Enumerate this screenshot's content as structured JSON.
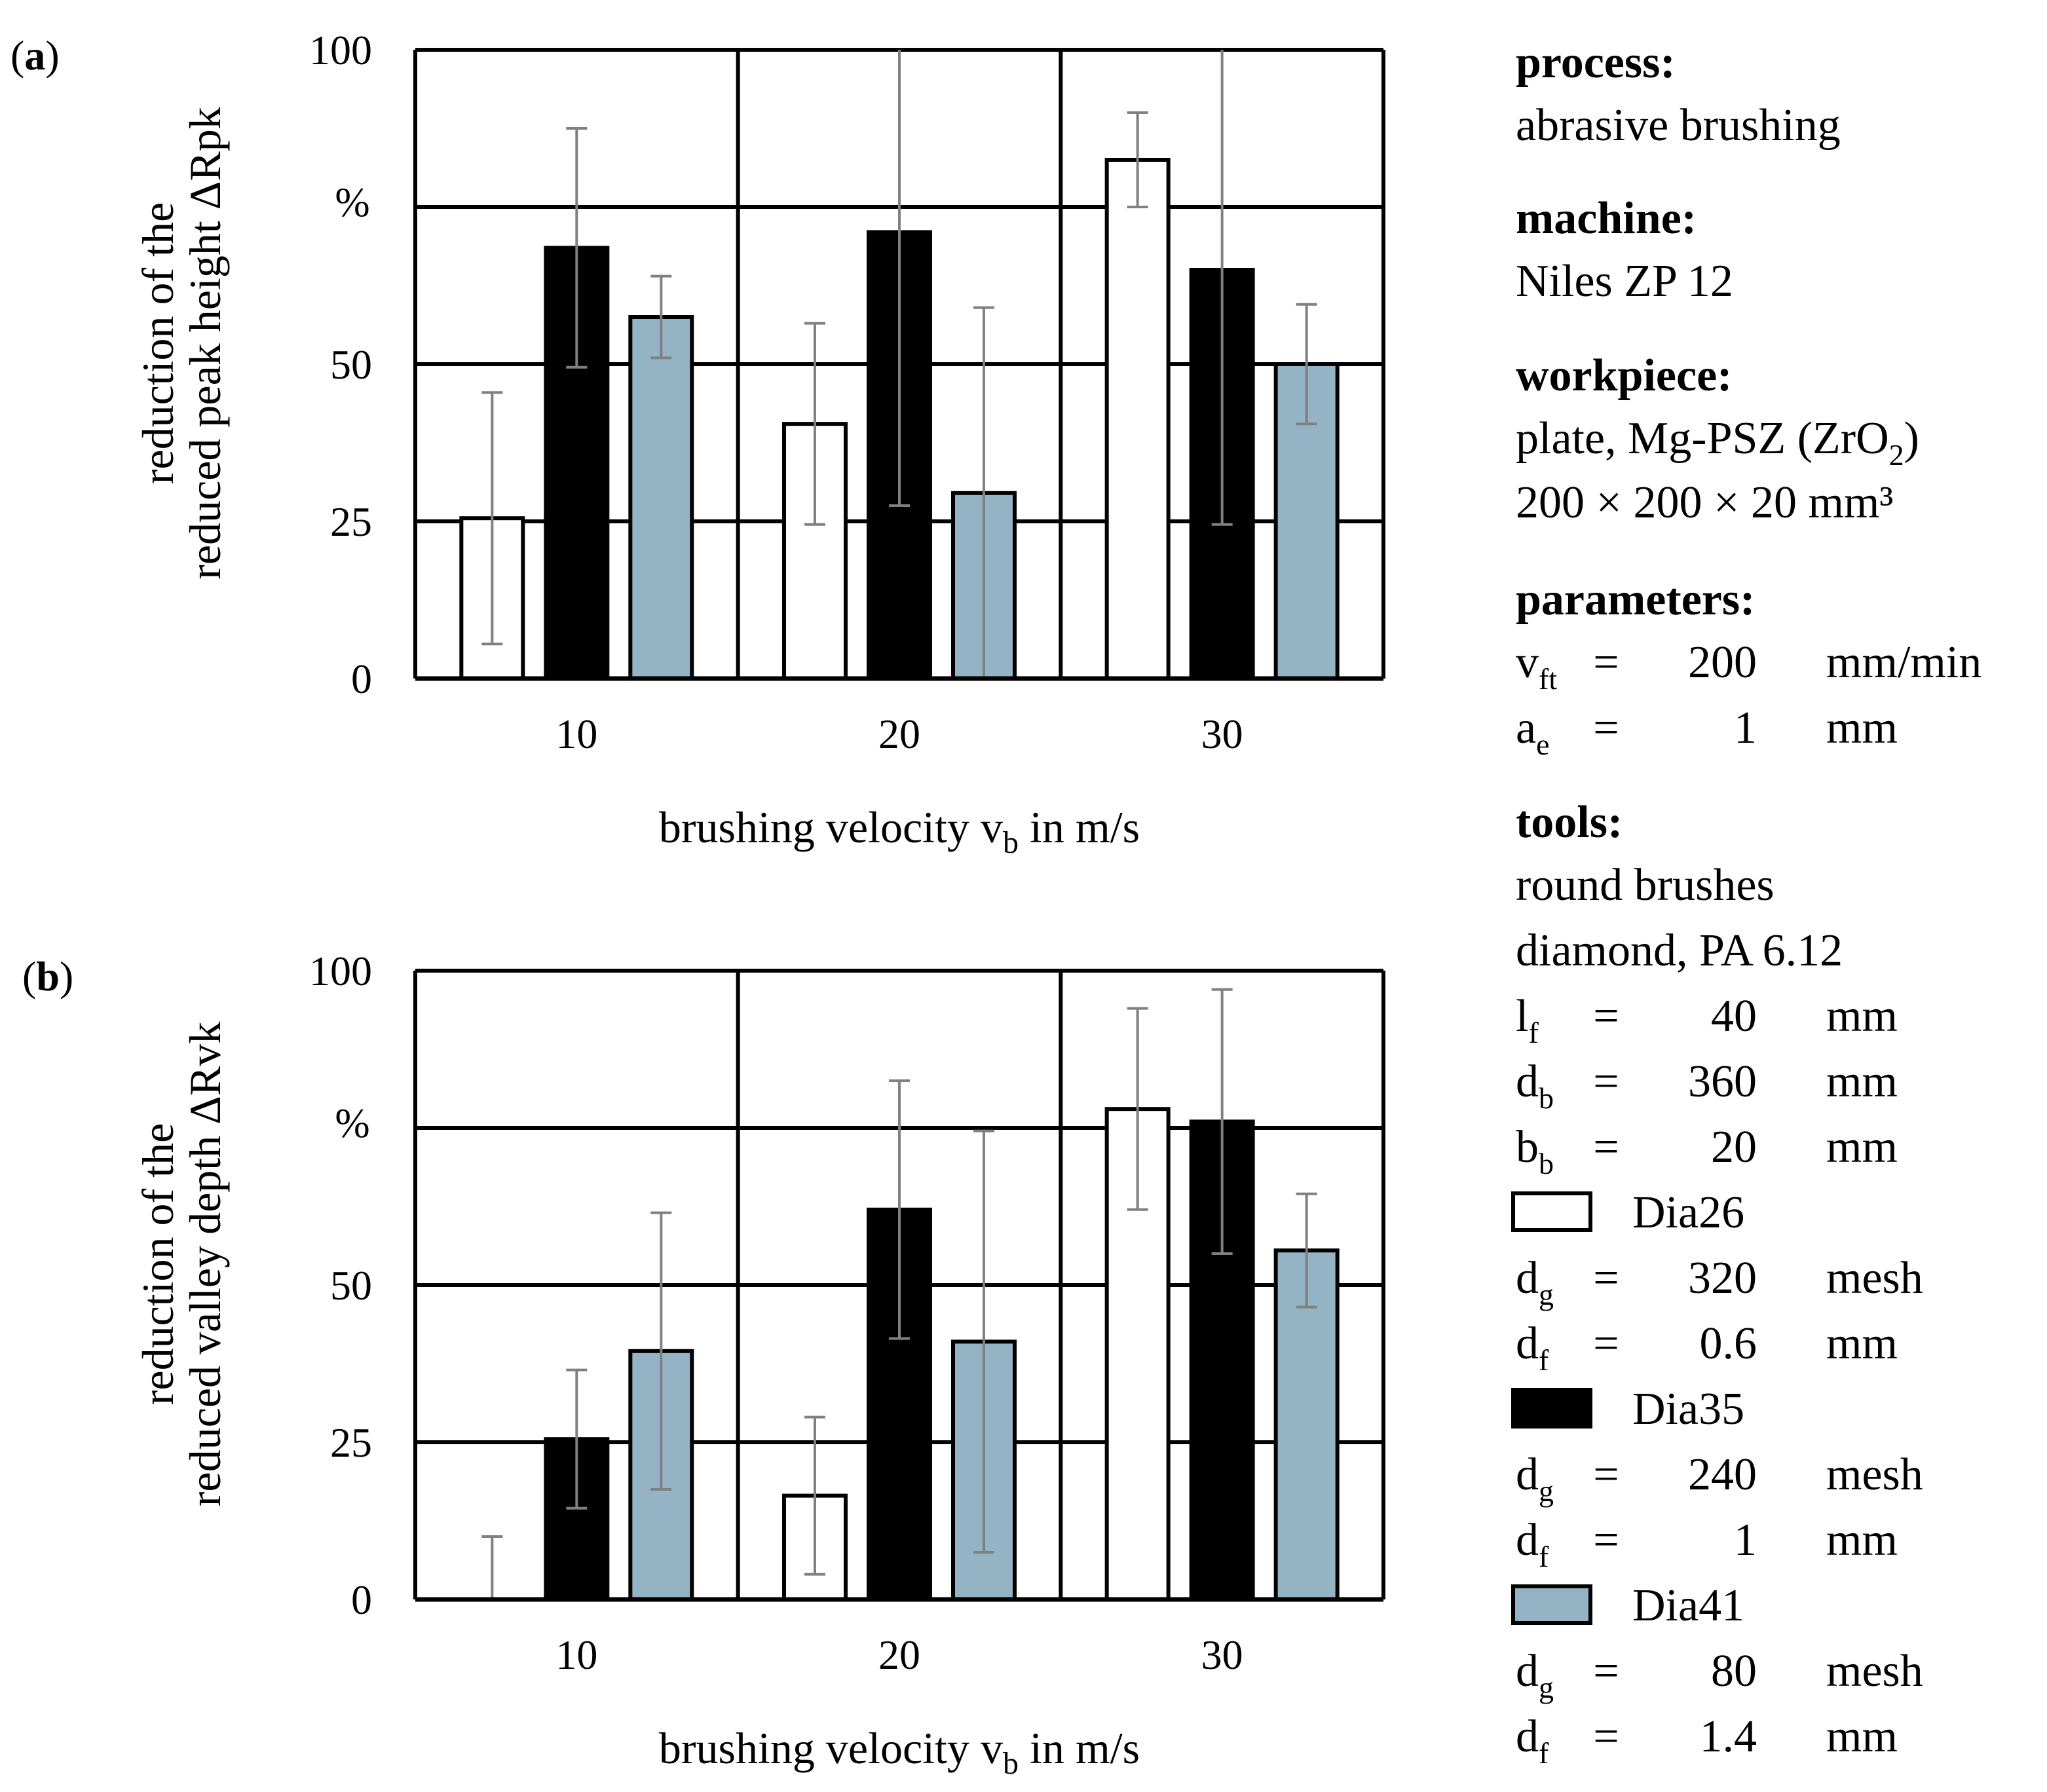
{
  "chart_data": [
    {
      "type": "bar",
      "panel": "(a)",
      "panel_letter": "a",
      "categories": [
        "10",
        "20",
        "30"
      ],
      "series": [
        {
          "name": "Dia26",
          "values": [
            25.5,
            40.5,
            82.5
          ],
          "errors": [
            20,
            16,
            7.5
          ]
        },
        {
          "name": "Dia35",
          "values": [
            68.5,
            71,
            65
          ],
          "errors": [
            19,
            43.5,
            40.5
          ]
        },
        {
          "name": "Dia41",
          "values": [
            57.5,
            29.5,
            50
          ],
          "errors": [
            6.5,
            29.5,
            9.5
          ]
        }
      ],
      "ylim": [
        0,
        100
      ],
      "yticks": [
        "0",
        "25",
        "50",
        "",
        "100"
      ],
      "yunit": "%",
      "ylabel_line1": "reduction of the",
      "ylabel_line2": "reduced peak height ΔRpk",
      "xlabel": "brushing velocity vb in m/s",
      "xlabel_main": "brushing velocity v",
      "xlabel_sub": "b",
      "xlabel_tail": " in m/s",
      "grid": true
    },
    {
      "type": "bar",
      "panel": "(b)",
      "panel_letter": "b",
      "categories": [
        "10",
        "20",
        "30"
      ],
      "series": [
        {
          "name": "Dia26",
          "values": [
            0,
            16.5,
            78
          ],
          "errors": [
            10,
            12.5,
            16
          ]
        },
        {
          "name": "Dia35",
          "values": [
            25.5,
            62,
            76
          ],
          "errors": [
            11,
            20.5,
            21
          ]
        },
        {
          "name": "Dia41",
          "values": [
            39.5,
            41,
            55.5
          ],
          "errors": [
            22,
            33.5,
            9
          ]
        }
      ],
      "ylim": [
        0,
        100
      ],
      "yticks": [
        "0",
        "25",
        "50",
        "",
        "100"
      ],
      "yunit": "%",
      "ylabel_line1": "reduction of the",
      "ylabel_line2": "reduced valley depth ΔRvk",
      "xlabel": "brushing velocity vb in m/s",
      "xlabel_main": "brushing velocity v",
      "xlabel_sub": "b",
      "xlabel_tail": " in m/s",
      "grid": true
    }
  ],
  "colors": {
    "Dia26": "#ffffff",
    "Dia35": "#000000",
    "Dia41": "#94b3c4",
    "error_bar": "#808080",
    "grid": "#000000"
  },
  "side": {
    "process_h": "process:",
    "process_v": "abrasive brushing",
    "machine_h": "machine:",
    "machine_v": "Niles ZP 12",
    "workpiece_h": "workpiece:",
    "wp_line1_a": "plate, Mg-PSZ (ZrO",
    "wp_line1_sub": "2",
    "wp_line1_b": ")",
    "wp_line2": "200 × 200 × 20 mm³",
    "parameters_h": "parameters:",
    "params": [
      {
        "sym": "v",
        "sub": "ft",
        "eq": "=",
        "val": "200",
        "unit": "mm/min"
      },
      {
        "sym": "a",
        "sub": "e",
        "eq": "=",
        "val": "1",
        "unit": "mm"
      }
    ],
    "tools_h": "tools:",
    "tools_v1": "round brushes",
    "tools_v2": "diamond, PA 6.12",
    "tool_params": [
      {
        "sym": "l",
        "sub": "f",
        "eq": "=",
        "val": "40",
        "unit": "mm"
      },
      {
        "sym": "d",
        "sub": "b",
        "eq": "=",
        "val": "360",
        "unit": "mm"
      },
      {
        "sym": "b",
        "sub": "b",
        "eq": "=",
        "val": "20",
        "unit": "mm"
      }
    ],
    "legend": [
      {
        "name": "Dia26",
        "rows": [
          {
            "sym": "d",
            "sub": "g",
            "eq": "=",
            "val": "320",
            "unit": "mesh"
          },
          {
            "sym": "d",
            "sub": "f",
            "eq": "=",
            "val": "0.6",
            "unit": "mm"
          }
        ]
      },
      {
        "name": "Dia35",
        "rows": [
          {
            "sym": "d",
            "sub": "g",
            "eq": "=",
            "val": "240",
            "unit": "mesh"
          },
          {
            "sym": "d",
            "sub": "f",
            "eq": "=",
            "val": "1",
            "unit": "mm"
          }
        ]
      },
      {
        "name": "Dia41",
        "rows": [
          {
            "sym": "d",
            "sub": "g",
            "eq": "=",
            "val": "80",
            "unit": "mesh"
          },
          {
            "sym": "d",
            "sub": "f",
            "eq": "=",
            "val": "1.4",
            "unit": "mm"
          }
        ]
      }
    ]
  }
}
